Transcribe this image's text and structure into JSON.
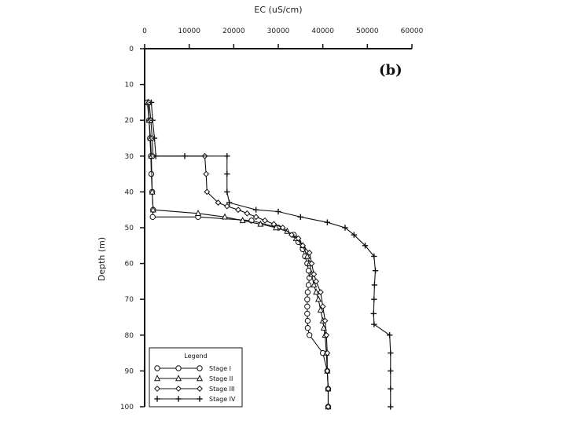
{
  "chart_data": {
    "type": "line",
    "panel_label": "(b)",
    "xlabel": "EC (uS/cm)",
    "ylabel": "Depth (m)",
    "xlim": [
      0,
      60000
    ],
    "ylim": [
      0,
      100
    ],
    "y_inverted": true,
    "x_axis_position": "top",
    "x_ticks": [
      0,
      10000,
      20000,
      30000,
      40000,
      50000,
      60000
    ],
    "y_ticks": [
      0,
      10,
      20,
      30,
      40,
      50,
      60,
      70,
      80,
      90,
      100
    ],
    "grid": false,
    "legend": {
      "title": "Legend",
      "position": "bottom-left",
      "entries": [
        "Stage I",
        "Stage II",
        "Stage III",
        "Stage IV"
      ]
    },
    "series": [
      {
        "name": "Stage I",
        "marker": "circle",
        "points": [
          [
            600,
            15
          ],
          [
            1000,
            20
          ],
          [
            1200,
            25
          ],
          [
            1400,
            30
          ],
          [
            1500,
            35
          ],
          [
            1700,
            40
          ],
          [
            1900,
            45
          ],
          [
            1800,
            47
          ],
          [
            12000,
            47
          ],
          [
            24000,
            48
          ],
          [
            30000,
            50
          ],
          [
            33500,
            52
          ],
          [
            34500,
            54
          ],
          [
            35500,
            56
          ],
          [
            36000,
            58
          ],
          [
            36500,
            60
          ],
          [
            36800,
            62
          ],
          [
            37000,
            64
          ],
          [
            36800,
            66
          ],
          [
            36600,
            68
          ],
          [
            36500,
            70
          ],
          [
            36500,
            72
          ],
          [
            36500,
            74
          ],
          [
            36600,
            76
          ],
          [
            36600,
            78
          ],
          [
            37000,
            80
          ],
          [
            40000,
            85
          ],
          [
            41000,
            90
          ],
          [
            41200,
            95
          ],
          [
            41200,
            100
          ]
        ]
      },
      {
        "name": "Stage II",
        "marker": "triangle",
        "points": [
          [
            800,
            15
          ],
          [
            1000,
            20
          ],
          [
            1300,
            25
          ],
          [
            1500,
            30
          ],
          [
            1700,
            40
          ],
          [
            1900,
            45
          ],
          [
            12000,
            46
          ],
          [
            18000,
            47
          ],
          [
            22000,
            48
          ],
          [
            26000,
            49
          ],
          [
            29500,
            50
          ],
          [
            32000,
            51
          ],
          [
            34000,
            53
          ],
          [
            35500,
            55
          ],
          [
            36500,
            58
          ],
          [
            37000,
            60
          ],
          [
            37500,
            63
          ],
          [
            38000,
            66
          ],
          [
            38500,
            68
          ],
          [
            39000,
            70
          ],
          [
            39500,
            73
          ],
          [
            40000,
            76
          ],
          [
            40200,
            78
          ],
          [
            40500,
            80
          ],
          [
            40800,
            85
          ],
          [
            41000,
            90
          ],
          [
            41200,
            95
          ],
          [
            41200,
            100
          ]
        ]
      },
      {
        "name": "Stage III",
        "marker": "diamond",
        "points": [
          [
            1000,
            15
          ],
          [
            1400,
            20
          ],
          [
            1700,
            25
          ],
          [
            1900,
            30
          ],
          [
            13500,
            30
          ],
          [
            13800,
            35
          ],
          [
            14000,
            40
          ],
          [
            16500,
            43
          ],
          [
            18500,
            44
          ],
          [
            21000,
            45
          ],
          [
            23000,
            46
          ],
          [
            25000,
            47
          ],
          [
            27000,
            48
          ],
          [
            29000,
            49
          ],
          [
            31000,
            50
          ],
          [
            33000,
            52
          ],
          [
            34500,
            53
          ],
          [
            35500,
            55
          ],
          [
            37000,
            57
          ],
          [
            37500,
            60
          ],
          [
            38000,
            63
          ],
          [
            38500,
            65
          ],
          [
            39500,
            68
          ],
          [
            40000,
            72
          ],
          [
            40500,
            76
          ],
          [
            40800,
            80
          ],
          [
            41000,
            85
          ],
          [
            41000,
            90
          ],
          [
            41200,
            95
          ],
          [
            41200,
            100
          ]
        ]
      },
      {
        "name": "Stage IV",
        "marker": "plus",
        "points": [
          [
            1500,
            15
          ],
          [
            1800,
            20
          ],
          [
            2200,
            25
          ],
          [
            2500,
            30
          ],
          [
            9000,
            30
          ],
          [
            18500,
            30
          ],
          [
            18500,
            35
          ],
          [
            18500,
            40
          ],
          [
            19000,
            43
          ],
          [
            25000,
            45
          ],
          [
            30000,
            45.5
          ],
          [
            35000,
            47
          ],
          [
            41000,
            48.5
          ],
          [
            45000,
            50
          ],
          [
            47000,
            52
          ],
          [
            49500,
            55
          ],
          [
            51500,
            58
          ],
          [
            51800,
            62
          ],
          [
            51600,
            66
          ],
          [
            51500,
            70
          ],
          [
            51400,
            74
          ],
          [
            51500,
            77
          ],
          [
            55000,
            80
          ],
          [
            55200,
            85
          ],
          [
            55200,
            90
          ],
          [
            55200,
            95
          ],
          [
            55200,
            100
          ]
        ]
      }
    ]
  }
}
